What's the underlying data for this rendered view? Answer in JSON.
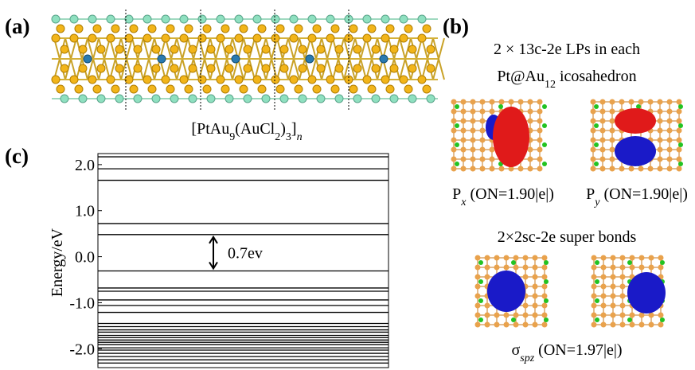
{
  "panel_a": {
    "label": "(a)",
    "formula": [
      {
        "text": "[PtAu"
      },
      {
        "text": "9",
        "style": "sub"
      },
      {
        "text": "(AuCl"
      },
      {
        "text": "2",
        "style": "sub"
      },
      {
        "text": ")"
      },
      {
        "text": "3",
        "style": "sub"
      },
      {
        "text": "]"
      },
      {
        "text": "n",
        "style": "italic-sub"
      }
    ]
  },
  "panel_b": {
    "label": "(b)",
    "lp_heading_1": [
      {
        "text": "2 × 13c-2e LPs in each"
      }
    ],
    "lp_heading_2": [
      {
        "text": "Pt@Au"
      },
      {
        "text": "12",
        "style": "sub"
      },
      {
        "text": " icosahedron"
      }
    ],
    "lp_caption_1": [
      {
        "text": "P"
      },
      {
        "text": "x",
        "style": "italic-sub"
      },
      {
        "text": " (ON=1.90|e|)"
      }
    ],
    "lp_caption_2": [
      {
        "text": "P"
      },
      {
        "text": "y",
        "style": "italic-sub"
      },
      {
        "text": " (ON=1.90|e|)"
      }
    ],
    "sb_heading": [
      {
        "text": "2×2sc-2e super bonds"
      }
    ],
    "sb_caption": [
      {
        "text": "σ"
      },
      {
        "text": "spz",
        "style": "italic-sub"
      },
      {
        "text": " (ON=1.97|e|)"
      }
    ]
  },
  "chart_data": {
    "type": "levels",
    "panel_label": "(c)",
    "y_label": "Energy/eV",
    "ylim": [
      -2.41,
      2.24
    ],
    "yticks": [
      {
        "value": 2,
        "label": "2.0"
      },
      {
        "value": 1,
        "label": "1.0"
      },
      {
        "value": 0,
        "label": "0.0"
      },
      {
        "value": -1,
        "label": "-1.0"
      },
      {
        "value": -2,
        "label": "-2.0"
      }
    ],
    "values": [
      2.17,
      1.91,
      1.66,
      0.72,
      0.48,
      -0.31,
      -0.68,
      -0.75,
      -0.94,
      -1.06,
      -1.21,
      -1.45,
      -1.52,
      -1.59,
      -1.64,
      -1.71,
      -1.76,
      -1.81,
      -1.86,
      -1.91,
      -1.98,
      -2.03,
      -2.1,
      -2.17,
      -2.24,
      -2.31
    ],
    "color": "#000000",
    "annotation": "0.7ev"
  }
}
